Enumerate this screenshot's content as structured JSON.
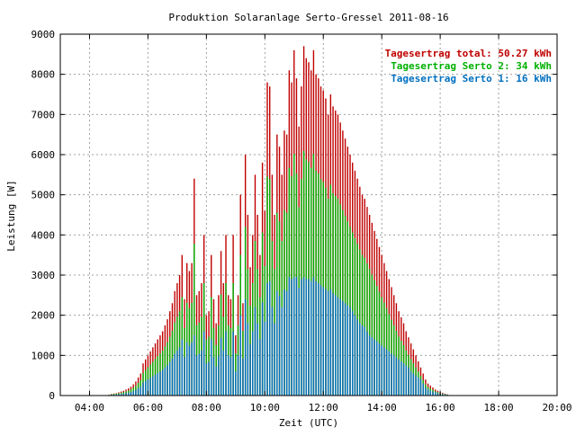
{
  "colors": {
    "total": "#c00000",
    "serto2": "#00b000",
    "serto1": "#0070c0",
    "grid": "#a0a0a0",
    "axis": "#000000"
  },
  "chart_data": {
    "type": "bar",
    "title": "Produktion Solaranlage Serto-Gressel 2011-08-16",
    "xlabel": "Zeit (UTC)",
    "ylabel": "Leistung [W]",
    "xlim": [
      "03:00",
      "20:00"
    ],
    "ylim": [
      0,
      9000
    ],
    "x_ticks": [
      "04:00",
      "06:00",
      "08:00",
      "10:00",
      "12:00",
      "14:00",
      "16:00",
      "18:00",
      "20:00"
    ],
    "y_ticks": [
      "0",
      "1000",
      "2000",
      "3000",
      "4000",
      "5000",
      "6000",
      "7000",
      "8000",
      "9000"
    ],
    "grid": true,
    "legend_position": "top-right",
    "legend": [
      {
        "key": "total",
        "label": "Tagesertrag total: 50.27 kWh"
      },
      {
        "key": "serto2",
        "label": "Tagesertrag Serto 2: 34 kWh"
      },
      {
        "key": "serto1",
        "label": "Tagesertrag Serto 1: 16 kWh"
      }
    ],
    "interval_minutes": 5,
    "start_time": "04:40",
    "series": [
      {
        "name": "Tagesertrag total: 50.27 kWh",
        "key": "total",
        "values": [
          20,
          40,
          50,
          60,
          80,
          100,
          120,
          150,
          180,
          220,
          280,
          350,
          450,
          550,
          800,
          900,
          1000,
          1100,
          1200,
          1300,
          1400,
          1500,
          1600,
          1750,
          1900,
          2100,
          2300,
          2600,
          2800,
          3000,
          3500,
          2400,
          3300,
          3100,
          3300,
          5400,
          2500,
          2600,
          2800,
          4000,
          2000,
          2100,
          3500,
          2400,
          1800,
          2500,
          3600,
          2800,
          4000,
          2500,
          2400,
          4000,
          1500,
          2500,
          5000,
          2300,
          6000,
          4500,
          3200,
          4000,
          5500,
          4500,
          3500,
          5800,
          4600,
          7800,
          7700,
          5500,
          4500,
          6500,
          6200,
          5500,
          6600,
          6500,
          8100,
          7800,
          8600,
          7900,
          6700,
          7700,
          8700,
          8400,
          8300,
          8100,
          8600,
          8000,
          7900,
          7700,
          7600,
          7400,
          7000,
          7500,
          7200,
          7100,
          7000,
          6800,
          6600,
          6400,
          6200,
          6000,
          5800,
          5600,
          5400,
          5200,
          5000,
          4900,
          4700,
          4500,
          4300,
          4100,
          3900,
          3700,
          3500,
          3300,
          3100,
          2900,
          2700,
          2500,
          2300,
          2100,
          1950,
          1800,
          1600,
          1450,
          1300,
          1150,
          1000,
          850,
          700,
          550,
          400,
          300,
          250,
          200,
          150,
          120,
          90,
          70,
          50,
          30
        ]
      },
      {
        "name": "Tagesertrag Serto 2: 34 kWh",
        "key": "serto2",
        "values": [
          15,
          30,
          40,
          45,
          60,
          70,
          85,
          105,
          125,
          155,
          195,
          245,
          315,
          385,
          560,
          630,
          700,
          770,
          840,
          910,
          980,
          1050,
          1120,
          1220,
          1330,
          1470,
          1610,
          1820,
          1960,
          2100,
          2450,
          1680,
          2310,
          2170,
          2310,
          3780,
          1750,
          1820,
          1960,
          2800,
          1400,
          1470,
          2450,
          1680,
          1260,
          1750,
          2520,
          1960,
          2800,
          1750,
          1680,
          2800,
          1050,
          1750,
          3500,
          1610,
          4200,
          3150,
          2240,
          2800,
          3850,
          3150,
          2450,
          4060,
          3220,
          5460,
          5390,
          3850,
          3150,
          4550,
          4340,
          3850,
          4620,
          4550,
          5670,
          5460,
          6020,
          5530,
          4690,
          5390,
          6090,
          5880,
          5810,
          5670,
          6020,
          5600,
          5530,
          5390,
          5320,
          5180,
          4900,
          5250,
          5040,
          4970,
          4900,
          4760,
          4620,
          4480,
          4340,
          4200,
          4060,
          3920,
          3780,
          3640,
          3500,
          3430,
          3290,
          3150,
          3010,
          2870,
          2730,
          2590,
          2450,
          2310,
          2170,
          2030,
          1890,
          1750,
          1610,
          1470,
          1365,
          1260,
          1120,
          1015,
          910,
          805,
          700,
          595,
          490,
          385,
          280,
          210,
          175,
          140,
          105,
          84,
          63,
          49,
          35,
          21
        ]
      },
      {
        "name": "Tagesertrag Serto 1: 16 kWh",
        "key": "serto1",
        "values": [
          8,
          16,
          20,
          24,
          32,
          40,
          48,
          60,
          72,
          88,
          112,
          140,
          180,
          220,
          320,
          360,
          400,
          440,
          480,
          520,
          560,
          600,
          640,
          700,
          760,
          840,
          920,
          1040,
          1120,
          1200,
          1400,
          960,
          1320,
          1240,
          1320,
          1500,
          1000,
          1040,
          1120,
          1600,
          800,
          840,
          1400,
          960,
          720,
          1000,
          1440,
          1120,
          1600,
          1000,
          960,
          1600,
          600,
          1000,
          2000,
          920,
          2400,
          1800,
          1280,
          1600,
          2200,
          1800,
          1400,
          2320,
          1840,
          2800,
          2850,
          2200,
          1800,
          2600,
          2480,
          2200,
          2640,
          2600,
          2950,
          2900,
          2950,
          2950,
          2680,
          2900,
          2950,
          2900,
          2900,
          2850,
          2950,
          2850,
          2800,
          2750,
          2700,
          2650,
          2600,
          2650,
          2550,
          2500,
          2450,
          2400,
          2350,
          2300,
          2250,
          2200,
          2100,
          2000,
          1900,
          1800,
          1750,
          1700,
          1600,
          1500,
          1450,
          1400,
          1350,
          1300,
          1250,
          1200,
          1150,
          1100,
          1050,
          1000,
          950,
          900,
          850,
          800,
          750,
          700,
          600,
          550,
          500,
          450,
          400,
          300,
          200,
          150,
          120,
          100,
          80,
          60,
          45,
          35,
          25,
          15
        ]
      }
    ]
  }
}
